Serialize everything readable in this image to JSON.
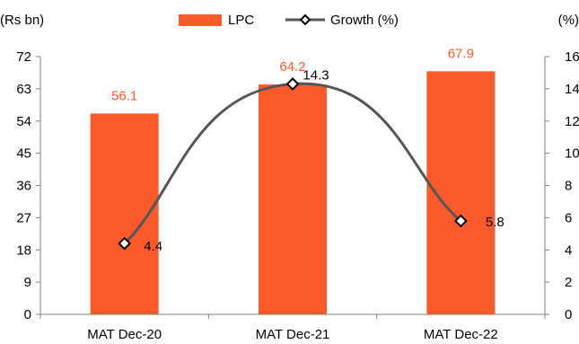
{
  "chart_data": {
    "type": "bar",
    "categories": [
      "MAT Dec-20",
      "MAT Dec-21",
      "MAT Dec-22"
    ],
    "series": [
      {
        "name": "LPC",
        "type": "bar",
        "axis": "left",
        "values": [
          56.1,
          64.2,
          67.9
        ],
        "labels": [
          "56.1",
          "64.2",
          "67.9"
        ],
        "color": "#FF5A2C"
      },
      {
        "name": "Growth (%)",
        "type": "line",
        "axis": "right",
        "values": [
          4.4,
          14.3,
          5.8
        ],
        "labels": [
          "4.4",
          "14.3",
          "5.8"
        ],
        "color": "#555555",
        "marker": "diamond"
      }
    ],
    "left_axis": {
      "unit_label": "(Rs bn)",
      "ylim": [
        0,
        72
      ],
      "ticks": [
        "0",
        "9",
        "18",
        "27",
        "36",
        "45",
        "54",
        "63",
        "72"
      ]
    },
    "right_axis": {
      "unit_label": "(%)",
      "ylim": [
        0,
        16
      ],
      "ticks": [
        "0",
        "2",
        "4",
        "6",
        "8",
        "10",
        "12",
        "14",
        "16"
      ]
    },
    "legend": {
      "placement": "top-center",
      "entries": [
        "LPC",
        "Growth (%)"
      ]
    },
    "grid": false,
    "bar_label_color": "#FF5A2C"
  }
}
